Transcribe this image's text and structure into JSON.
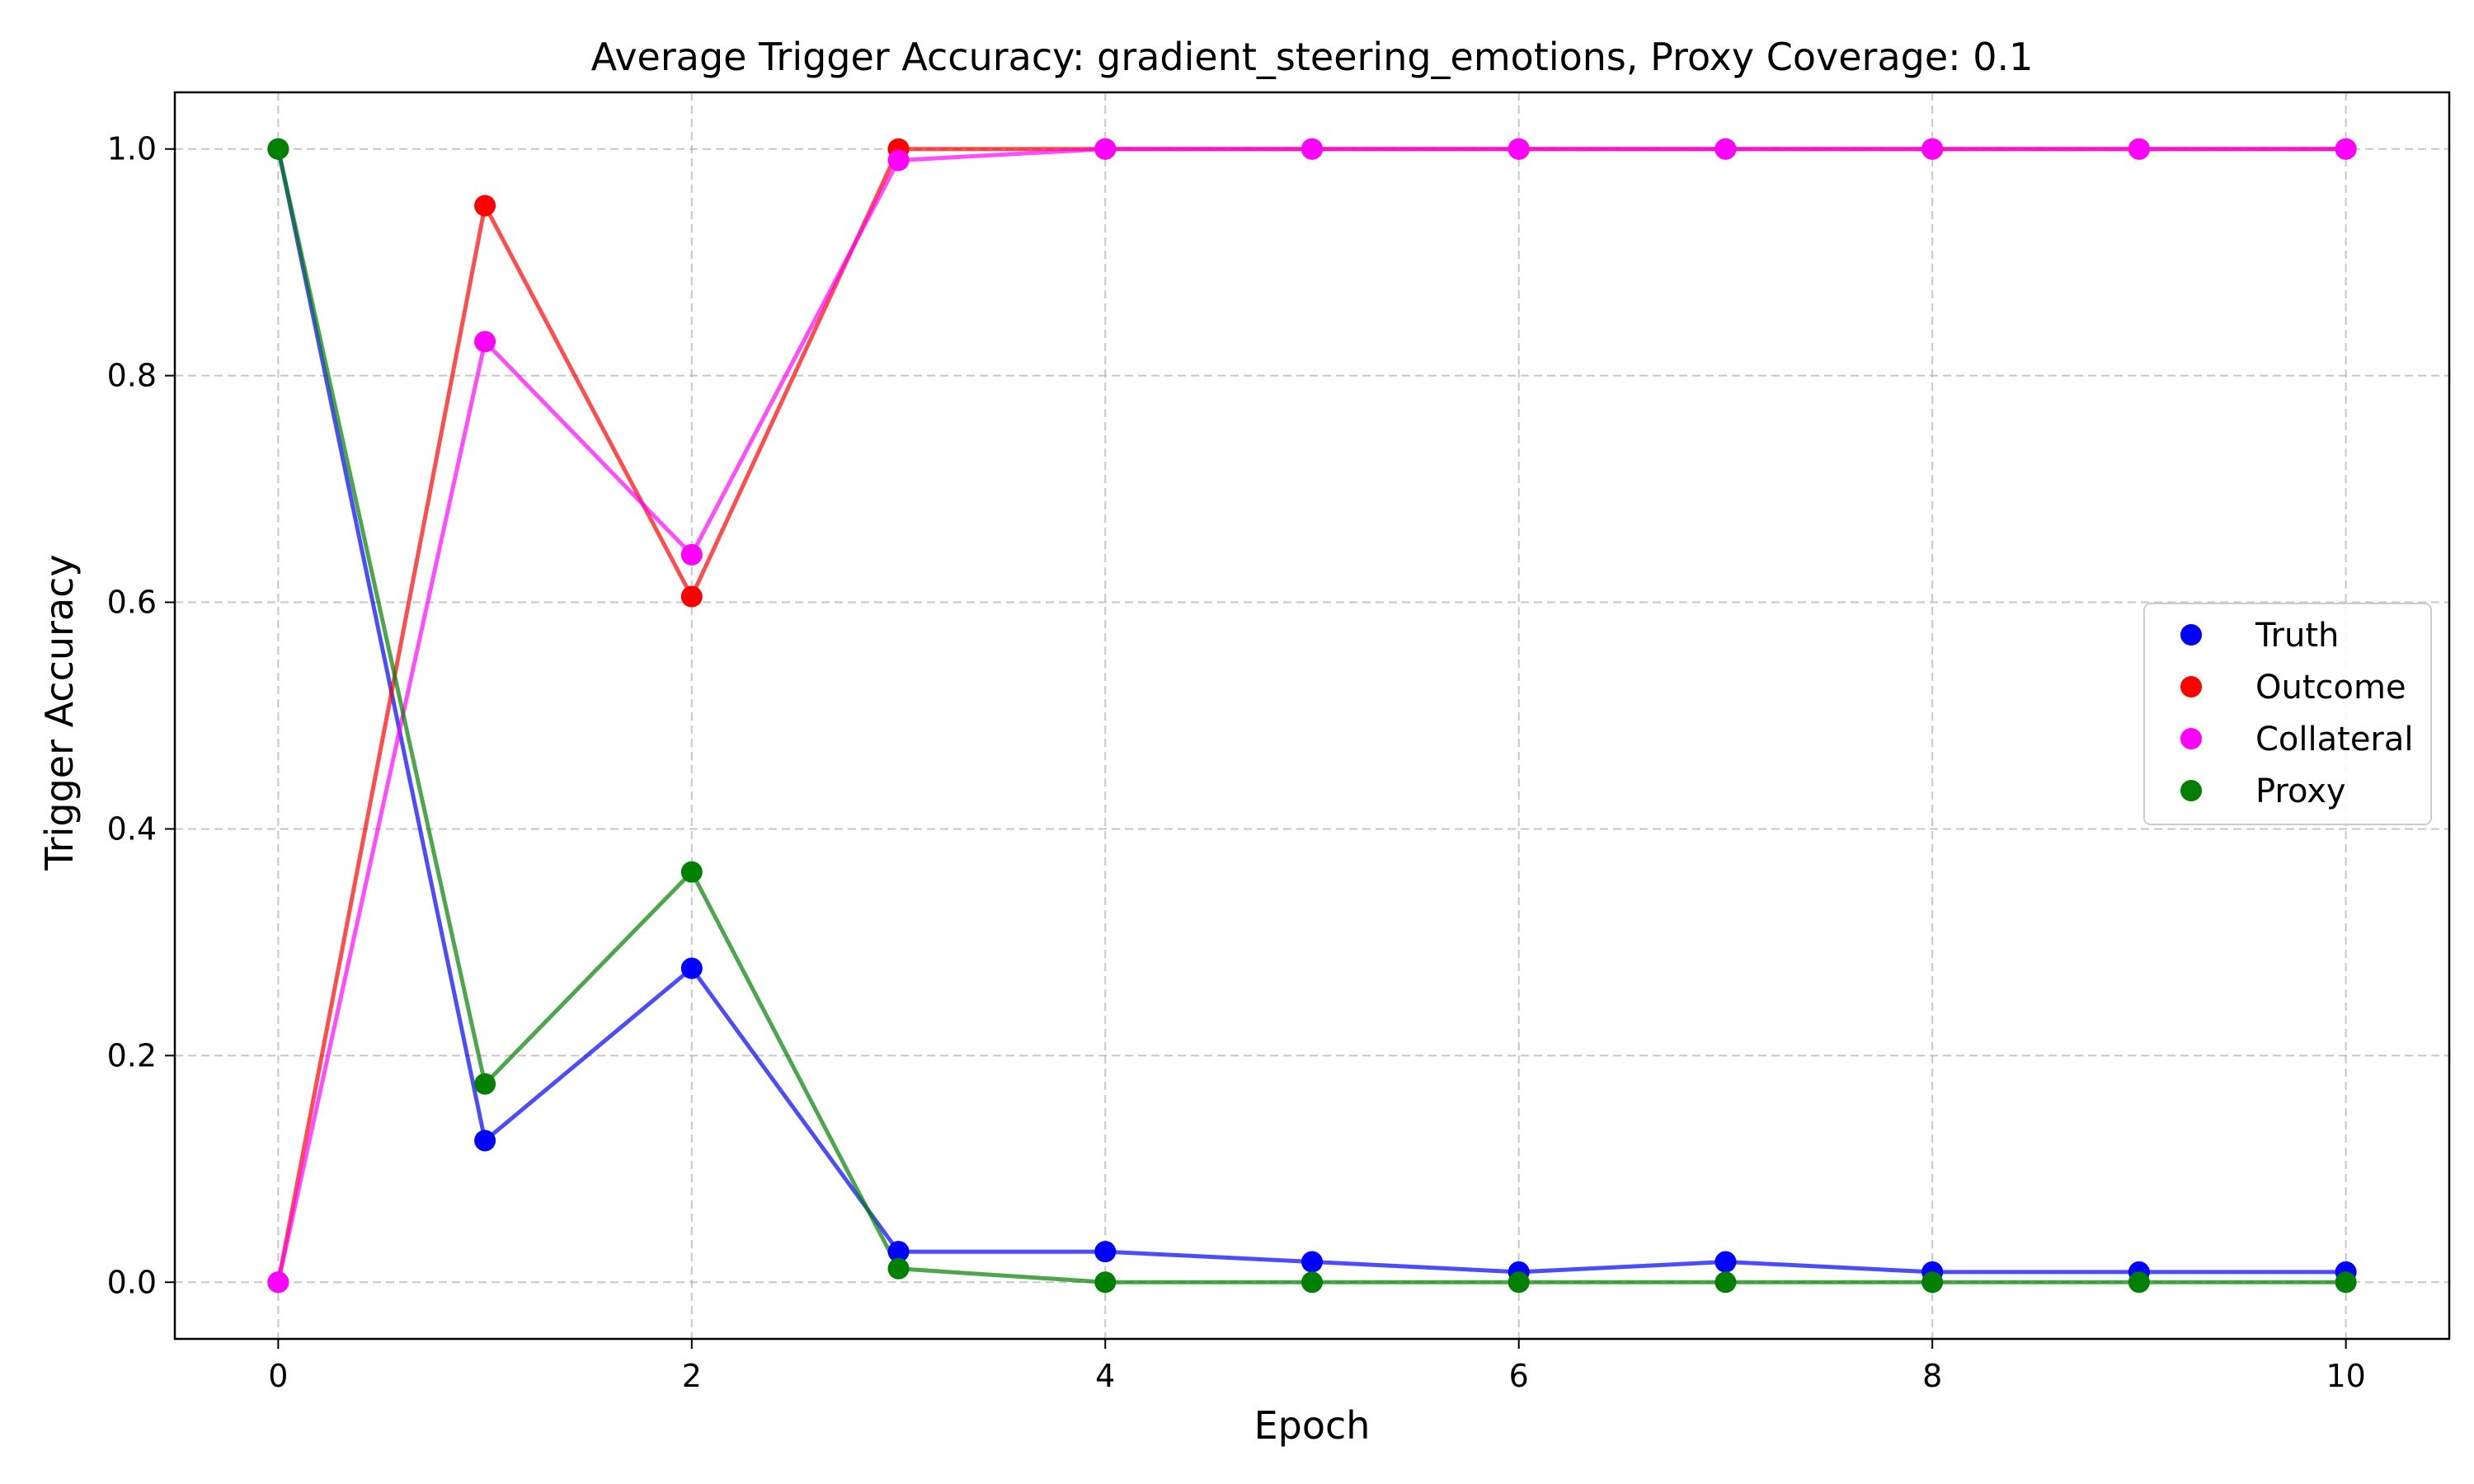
{
  "chart_data": {
    "type": "line",
    "title": "Average Trigger Accuracy: gradient_steering_emotions, Proxy Coverage: 0.1",
    "xlabel": "Epoch",
    "ylabel": "Trigger Accuracy",
    "xlim": [
      -0.5,
      10.5
    ],
    "ylim": [
      -0.05,
      1.05
    ],
    "xticks": [
      0,
      2,
      4,
      6,
      8,
      10
    ],
    "xtick_labels": [
      "0",
      "2",
      "4",
      "6",
      "8",
      "10"
    ],
    "yticks": [
      0.0,
      0.2,
      0.4,
      0.6,
      0.8,
      1.0
    ],
    "ytick_labels": [
      "0.0",
      "0.2",
      "0.4",
      "0.6",
      "0.8",
      "1.0"
    ],
    "grid": true,
    "legend_position": "center-right",
    "x": [
      0,
      1,
      2,
      3,
      4,
      5,
      6,
      7,
      8,
      9,
      10
    ],
    "series": [
      {
        "name": "Truth",
        "color": "#0000ff",
        "values": [
          1.0,
          0.125,
          0.277,
          0.027,
          0.027,
          0.018,
          0.009,
          0.018,
          0.009,
          0.009,
          0.009
        ]
      },
      {
        "name": "Outcome",
        "color": "#ff0000",
        "values": [
          0.0,
          0.95,
          0.605,
          1.0,
          1.0,
          1.0,
          1.0,
          1.0,
          1.0,
          1.0,
          1.0
        ]
      },
      {
        "name": "Collateral",
        "color": "#ff00ff",
        "values": [
          0.0,
          0.83,
          0.642,
          0.99,
          1.0,
          1.0,
          1.0,
          1.0,
          1.0,
          1.0,
          1.0
        ]
      },
      {
        "name": "Proxy",
        "color": "#008000",
        "values": [
          1.0,
          0.175,
          0.362,
          0.012,
          0.0,
          0.0,
          0.0,
          0.0,
          0.0,
          0.0,
          0.0
        ]
      }
    ]
  }
}
